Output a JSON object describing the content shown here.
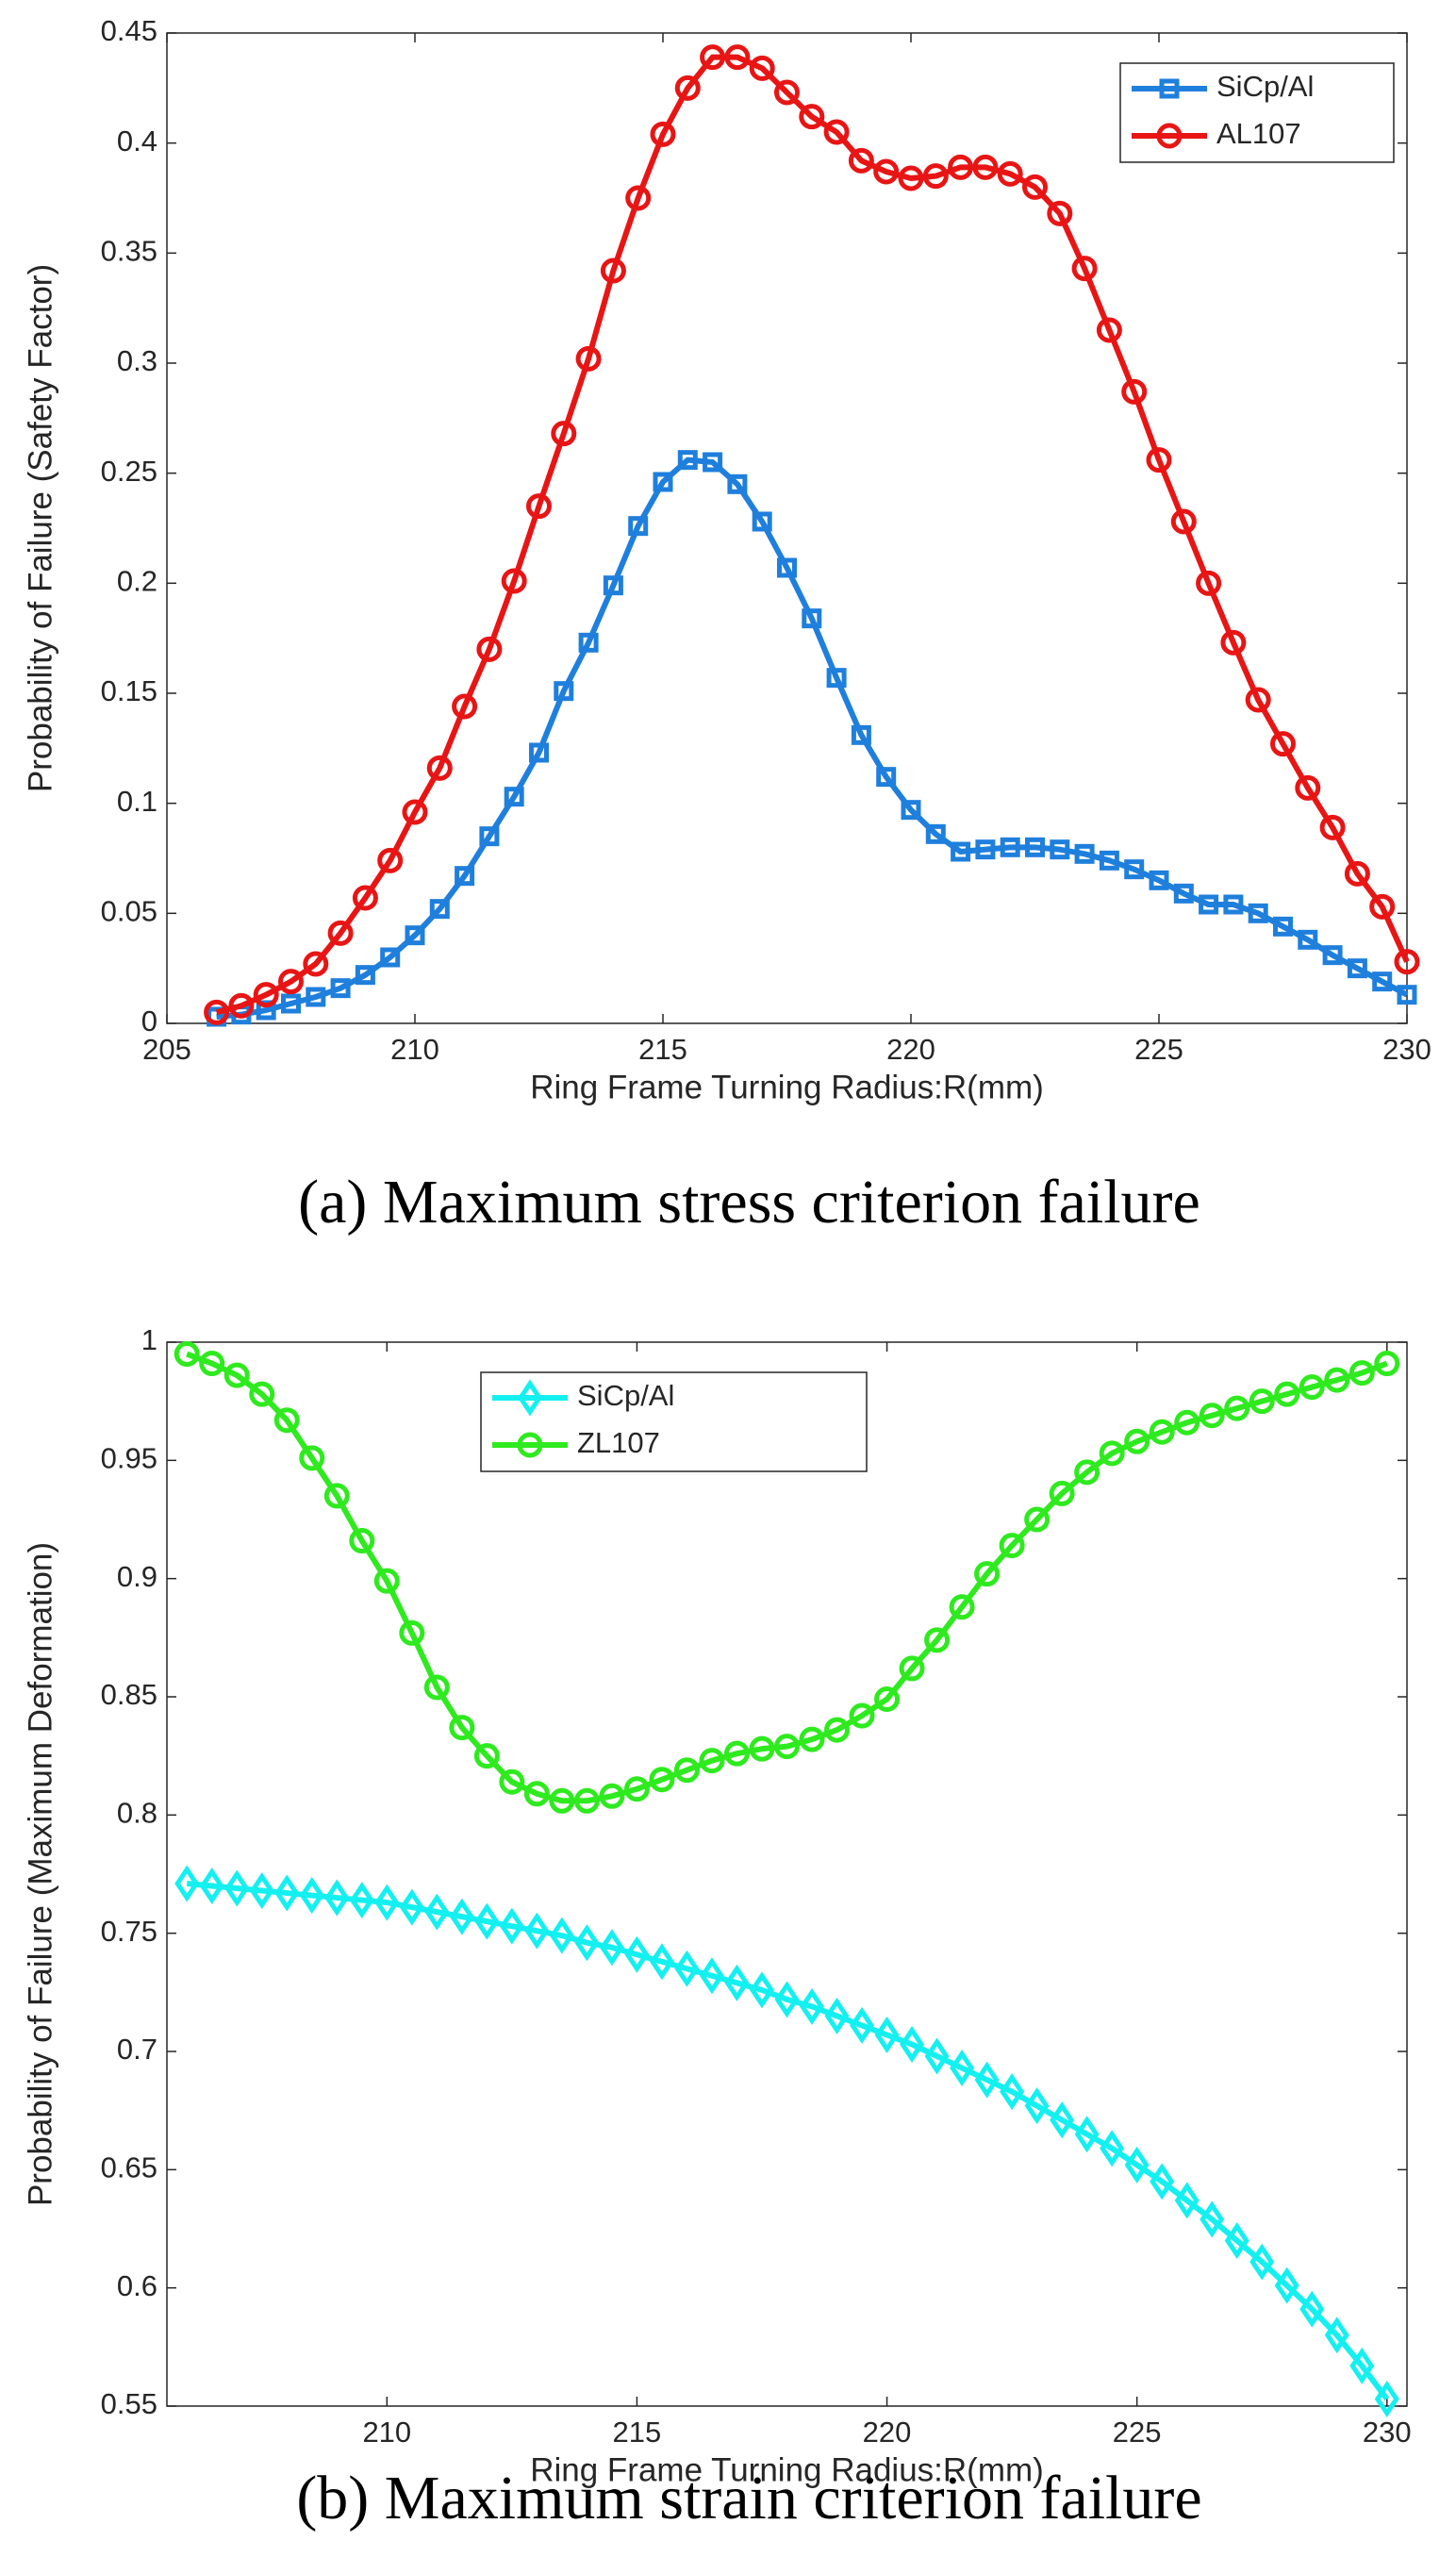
{
  "chart_data": [
    {
      "type": "line",
      "caption": "(a) Maximum stress criterion failure",
      "xlabel": "Ring Frame Turning Radius:R(mm)",
      "ylabel": "Probability of Failure (Safety Factor)",
      "x": [
        206,
        206.5,
        207,
        207.5,
        208,
        208.5,
        209,
        209.5,
        210,
        210.5,
        211,
        211.5,
        212,
        212.5,
        213,
        213.5,
        214,
        214.5,
        215,
        215.5,
        216,
        216.5,
        217,
        217.5,
        218,
        218.5,
        219,
        219.5,
        220,
        220.5,
        221,
        221.5,
        222,
        222.5,
        223,
        223.5,
        224,
        224.5,
        225,
        225.5,
        226,
        226.5,
        227,
        227.5,
        228,
        228.5,
        229,
        229.5,
        230
      ],
      "series": [
        {
          "name": "SiCp/Al",
          "color": "#1f7fdc",
          "marker": "square",
          "values": [
            0.003,
            0.004,
            0.006,
            0.009,
            0.012,
            0.016,
            0.022,
            0.03,
            0.04,
            0.052,
            0.067,
            0.085,
            0.103,
            0.123,
            0.151,
            0.173,
            0.199,
            0.226,
            0.246,
            0.256,
            0.255,
            0.245,
            0.228,
            0.207,
            0.184,
            0.157,
            0.131,
            0.112,
            0.097,
            0.086,
            0.078,
            0.079,
            0.08,
            0.08,
            0.079,
            0.077,
            0.074,
            0.07,
            0.065,
            0.059,
            0.054,
            0.054,
            0.05,
            0.044,
            0.038,
            0.031,
            0.025,
            0.019,
            0.013
          ]
        },
        {
          "name": "AL107",
          "color": "#e81515",
          "marker": "circle",
          "values": [
            0.005,
            0.008,
            0.013,
            0.019,
            0.027,
            0.041,
            0.057,
            0.074,
            0.096,
            0.116,
            0.144,
            0.17,
            0.201,
            0.235,
            0.268,
            0.302,
            0.342,
            0.375,
            0.404,
            0.425,
            0.439,
            0.439,
            0.434,
            0.423,
            0.412,
            0.405,
            0.392,
            0.387,
            0.384,
            0.385,
            0.389,
            0.389,
            0.386,
            0.38,
            0.368,
            0.343,
            0.315,
            0.287,
            0.256,
            0.228,
            0.2,
            0.173,
            0.147,
            0.127,
            0.107,
            0.089,
            0.068,
            0.053,
            0.028
          ]
        }
      ],
      "xlim": [
        205,
        230
      ],
      "xticks": [
        205,
        210,
        215,
        220,
        225,
        230
      ],
      "ylim": [
        0,
        0.45
      ],
      "yticks": [
        0,
        0.05,
        0.1,
        0.15,
        0.2,
        0.25,
        0.3,
        0.35,
        0.4,
        0.45
      ],
      "legend": "northeast"
    },
    {
      "type": "line",
      "caption": "(b) Maximum strain criterion failure",
      "xlabel": "Ring Frame Turning Radius:R(mm)",
      "ylabel": "Probability of Failure (Maximum Deformation)",
      "x": [
        206,
        206.5,
        207,
        207.5,
        208,
        208.5,
        209,
        209.5,
        210,
        210.5,
        211,
        211.5,
        212,
        212.5,
        213,
        213.5,
        214,
        214.5,
        215,
        215.5,
        216,
        216.5,
        217,
        217.5,
        218,
        218.5,
        219,
        219.5,
        220,
        220.5,
        221,
        221.5,
        222,
        222.5,
        223,
        223.5,
        224,
        224.5,
        225,
        225.5,
        226,
        226.5,
        227,
        227.5,
        228,
        228.5,
        229,
        229.5,
        230
      ],
      "series": [
        {
          "name": "SiCp/Al",
          "color": "#14f0f0",
          "marker": "diamond",
          "values": [
            0.771,
            0.77,
            0.769,
            0.768,
            0.767,
            0.766,
            0.765,
            0.764,
            0.763,
            0.761,
            0.759,
            0.757,
            0.755,
            0.753,
            0.751,
            0.749,
            0.746,
            0.744,
            0.741,
            0.738,
            0.735,
            0.732,
            0.729,
            0.726,
            0.722,
            0.719,
            0.715,
            0.711,
            0.707,
            0.703,
            0.698,
            0.693,
            0.688,
            0.683,
            0.677,
            0.671,
            0.665,
            0.659,
            0.652,
            0.645,
            0.637,
            0.629,
            0.62,
            0.611,
            0.601,
            0.591,
            0.58,
            0.567,
            0.553
          ]
        },
        {
          "name": "ZL107",
          "color": "#2eea1e",
          "marker": "circle",
          "values": [
            0.995,
            0.991,
            0.986,
            0.978,
            0.967,
            0.951,
            0.935,
            0.916,
            0.899,
            0.877,
            0.854,
            0.837,
            0.825,
            0.814,
            0.809,
            0.806,
            0.806,
            0.808,
            0.811,
            0.815,
            0.819,
            0.823,
            0.826,
            0.828,
            0.829,
            0.832,
            0.836,
            0.842,
            0.849,
            0.862,
            0.874,
            0.888,
            0.902,
            0.914,
            0.925,
            0.936,
            0.945,
            0.953,
            0.958,
            0.962,
            0.966,
            0.969,
            0.972,
            0.975,
            0.978,
            0.981,
            0.984,
            0.987,
            0.991
          ]
        }
      ],
      "xlim": [
        205.6,
        230.4
      ],
      "xticks": [
        210,
        215,
        220,
        225,
        230
      ],
      "ylim": [
        0.55,
        1
      ],
      "yticks": [
        0.55,
        0.6,
        0.65,
        0.7,
        0.75,
        0.8,
        0.85,
        0.9,
        0.95,
        1
      ],
      "legend": "north"
    }
  ]
}
